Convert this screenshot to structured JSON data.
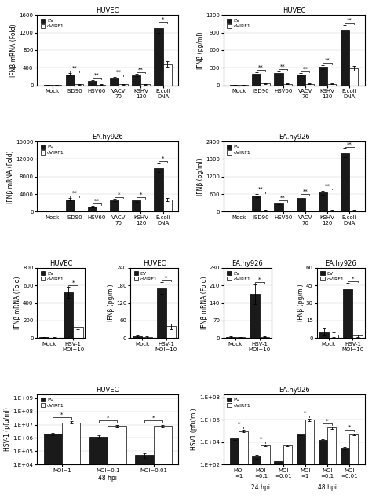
{
  "chart_data": [
    {
      "type": "bar",
      "title": "HUVEC",
      "ylabel": "IFNβ mRNA (Fold)",
      "categories": [
        "Mock",
        "ISD90",
        "HSV60",
        "VACV\n70",
        "KSHV\n120",
        "E.coli\nDNA"
      ],
      "series": [
        {
          "name": "EV",
          "color": "#1a1a1a",
          "values": [
            5,
            250,
            100,
            170,
            230,
            1300
          ],
          "errors": [
            3,
            30,
            15,
            20,
            25,
            100
          ]
        },
        {
          "name": "oVIRF1",
          "color": "#ffffff",
          "values": [
            3,
            20,
            15,
            20,
            20,
            480
          ],
          "errors": [
            2,
            5,
            5,
            5,
            5,
            60
          ]
        }
      ],
      "significance": [
        null,
        "**",
        "**",
        "**",
        "**",
        "*"
      ],
      "ylim": [
        0,
        1600
      ],
      "yticks": [
        0,
        400,
        800,
        1200,
        1600
      ],
      "grid": true,
      "legend": "upper left"
    },
    {
      "type": "bar",
      "title": "HUVEC",
      "ylabel": "IFNβ (pg/ml)",
      "categories": [
        "Mock",
        "ISD90",
        "HSV60",
        "VACV\n70",
        "KSHV\n120",
        "E.coli\nDNA"
      ],
      "series": [
        {
          "name": "EV",
          "color": "#1a1a1a",
          "values": [
            3,
            200,
            210,
            185,
            310,
            950
          ],
          "errors": [
            2,
            25,
            25,
            20,
            35,
            80
          ]
        },
        {
          "name": "oVIRF1",
          "color": "#ffffff",
          "values": [
            2,
            30,
            25,
            25,
            25,
            290
          ],
          "errors": [
            1,
            8,
            8,
            8,
            8,
            40
          ]
        }
      ],
      "significance": [
        null,
        "**",
        "**",
        "**",
        "**",
        "**"
      ],
      "ylim": [
        0,
        1200
      ],
      "yticks": [
        0,
        300,
        600,
        900,
        1200
      ],
      "grid": true,
      "legend": "upper left"
    },
    {
      "type": "bar",
      "title": "EA.hy926",
      "ylabel": "IFNβ mRNA (Fold)",
      "categories": [
        "Mock",
        "ISD90",
        "HSV60",
        "VACV\n70",
        "KSHV\n120",
        "E.coli\nDNA"
      ],
      "series": [
        {
          "name": "EV",
          "color": "#1a1a1a",
          "values": [
            10,
            2800,
            1200,
            2600,
            2500,
            10000
          ],
          "errors": [
            5,
            300,
            150,
            280,
            270,
            1000
          ]
        },
        {
          "name": "oVIRF1",
          "color": "#ffffff",
          "values": [
            5,
            200,
            100,
            250,
            100,
            2800
          ],
          "errors": [
            3,
            40,
            20,
            50,
            20,
            400
          ]
        }
      ],
      "significance": [
        null,
        "**",
        "**",
        "*",
        "*",
        "*"
      ],
      "ylim": [
        0,
        16000
      ],
      "yticks": [
        0,
        4000,
        8000,
        12000,
        16000
      ],
      "grid": true,
      "legend": "upper left"
    },
    {
      "type": "bar",
      "title": "EA.hy926",
      "ylabel": "IFNβ (pg/ml)",
      "categories": [
        "Mock",
        "ISD90",
        "HSV60",
        "VACV\n70",
        "KSHV\n120",
        "E.coli\nDNA"
      ],
      "series": [
        {
          "name": "EV",
          "color": "#1a1a1a",
          "values": [
            5,
            550,
            280,
            480,
            650,
            2000
          ],
          "errors": [
            3,
            60,
            35,
            55,
            70,
            150
          ]
        },
        {
          "name": "oVIRF1",
          "color": "#ffffff",
          "values": [
            3,
            50,
            30,
            30,
            50,
            50
          ],
          "errors": [
            2,
            10,
            8,
            8,
            10,
            10
          ]
        }
      ],
      "significance": [
        null,
        "**",
        "**",
        "**",
        "**",
        "**"
      ],
      "ylim": [
        0,
        2400
      ],
      "yticks": [
        0,
        600,
        1200,
        1800,
        2400
      ],
      "grid": true,
      "legend": "upper left"
    },
    {
      "type": "bar",
      "title": "HUVEC",
      "ylabel": "IFNβ mRNA (Fold)",
      "categories": [
        "Mock",
        "HSV-1\nMOI=10"
      ],
      "series": [
        {
          "name": "EV",
          "color": "#1a1a1a",
          "values": [
            10,
            520
          ],
          "errors": [
            5,
            60
          ]
        },
        {
          "name": "oVIRF1",
          "color": "#ffffff",
          "values": [
            5,
            130
          ],
          "errors": [
            3,
            30
          ]
        }
      ],
      "significance": [
        null,
        "*"
      ],
      "ylim": [
        0,
        800
      ],
      "yticks": [
        0,
        200,
        400,
        600,
        800
      ],
      "grid": true,
      "legend": "upper left"
    },
    {
      "type": "bar",
      "title": "HUVEC",
      "ylabel": "IFNβ (pg/ml)",
      "categories": [
        "Mock",
        "HSV-1\nMOI=10"
      ],
      "series": [
        {
          "name": "EV",
          "color": "#1a1a1a",
          "values": [
            5,
            170
          ],
          "errors": [
            3,
            20
          ]
        },
        {
          "name": "oVIRF1",
          "color": "#ffffff",
          "values": [
            3,
            40
          ],
          "errors": [
            2,
            10
          ]
        }
      ],
      "significance": [
        null,
        "*"
      ],
      "ylim": [
        0,
        240
      ],
      "yticks": [
        0,
        60,
        120,
        180,
        240
      ],
      "grid": true,
      "legend": "upper left"
    },
    {
      "type": "bar",
      "title": "EA.hy926",
      "ylabel": "IFNβ mRNA (Fold)",
      "categories": [
        "Mock",
        "HSV-1\nMOI=10"
      ],
      "series": [
        {
          "name": "EV",
          "color": "#1a1a1a",
          "values": [
            5,
            175
          ],
          "errors": [
            3,
            40
          ]
        },
        {
          "name": "oVIRF1",
          "color": "#ffffff",
          "values": [
            3,
            5
          ],
          "errors": [
            2,
            2
          ]
        }
      ],
      "significance": [
        null,
        "*"
      ],
      "ylim": [
        0,
        280
      ],
      "yticks": [
        0,
        70,
        140,
        210,
        280
      ],
      "grid": true,
      "legend": "upper left"
    },
    {
      "type": "bar",
      "title": "EA.hy926",
      "ylabel": "IFNβ (pg/ml)",
      "categories": [
        "Mock",
        "HSV-1\nMOI=10"
      ],
      "series": [
        {
          "name": "EV",
          "color": "#1a1a1a",
          "values": [
            5,
            42
          ],
          "errors": [
            3,
            5
          ]
        },
        {
          "name": "oVIRF1",
          "color": "#ffffff",
          "values": [
            3,
            2
          ],
          "errors": [
            2,
            1
          ]
        }
      ],
      "significance": [
        null,
        "*"
      ],
      "ylim": [
        0,
        60
      ],
      "yticks": [
        0,
        15,
        30,
        45,
        60
      ],
      "grid": true,
      "legend": "upper left"
    },
    {
      "type": "bar",
      "title": "HUVEC",
      "ylabel": "HSV-1 (pfu/ml)",
      "xlabel": "48 hpi",
      "categories": [
        "MOI=1",
        "MOI=0.1",
        "MOI=0.01"
      ],
      "series": [
        {
          "name": "EV",
          "color": "#1a1a1a",
          "values": [
            2000000,
            1200000,
            50000
          ],
          "errors": [
            500000,
            300000,
            20000
          ]
        },
        {
          "name": "oVIRF1",
          "color": "#ffffff",
          "values": [
            15000000,
            8000000,
            8000000
          ],
          "errors": [
            3000000,
            2000000,
            2000000
          ]
        }
      ],
      "significance": [
        "*",
        "*",
        "*"
      ],
      "log": "y",
      "ylim": [
        10000,
        2000000000
      ],
      "yticks": [
        {
          "value": 10000,
          "label": "1.E+04"
        },
        {
          "value": 100000,
          "label": "1.E+05"
        },
        {
          "value": 1000000,
          "label": "1.E+06"
        },
        {
          "value": 10000000,
          "label": "1.E+07"
        },
        {
          "value": 100000000,
          "label": "1.E+08"
        },
        {
          "value": 1000000000,
          "label": "1.E+09"
        }
      ],
      "grid": true,
      "legend": "upper left"
    },
    {
      "type": "bar",
      "title": "EA.hy926",
      "ylabel": "HSV1 (pfu/ml)",
      "categories": [
        "MOI\n=1",
        "MOI\n=0.1",
        "MOI\n=0.01",
        "MOI\n=1",
        "MOI\n=0.1",
        "MOI\n=0.01"
      ],
      "group_labels": [
        "24 hpi",
        "48 hpi"
      ],
      "series": [
        {
          "name": "EV",
          "color": "#1a1a1a",
          "values": [
            20000,
            500,
            200,
            50000,
            15000,
            3000
          ],
          "errors": [
            5000,
            200,
            80,
            10000,
            3000,
            800
          ]
        },
        {
          "name": "oVIRF1",
          "color": "#ffffff",
          "values": [
            100000,
            5000,
            5000,
            1000000,
            200000,
            50000
          ],
          "errors": [
            20000,
            1000,
            1000,
            200000,
            50000,
            10000
          ]
        }
      ],
      "significance": [
        "*",
        "*",
        null,
        "*",
        "*",
        "*"
      ],
      "log": "y",
      "ylim": [
        100,
        200000000
      ],
      "yticks": [
        {
          "value": 100,
          "label": "1.E+02"
        },
        {
          "value": 10000,
          "label": "1.E+04"
        },
        {
          "value": 1000000,
          "label": "1.E+06"
        },
        {
          "value": 100000000,
          "label": "1.E+08"
        }
      ],
      "grid": true,
      "legend": "upper left"
    }
  ]
}
